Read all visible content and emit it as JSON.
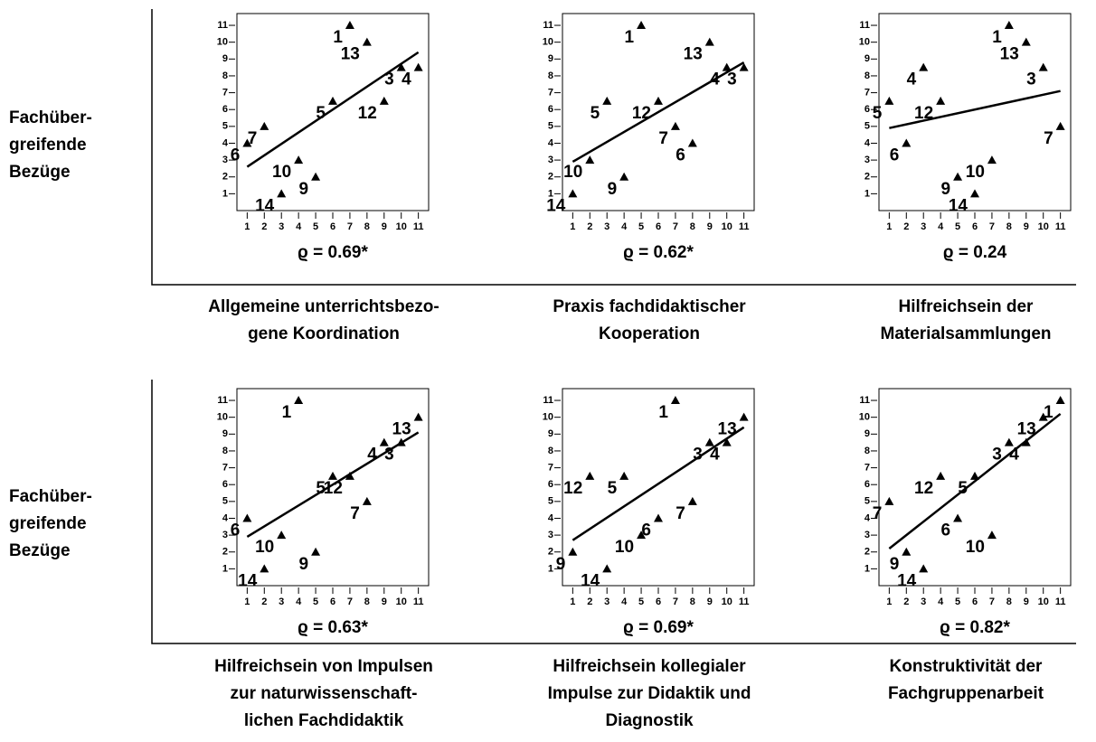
{
  "row_labels": [
    [
      "Fachüber-",
      "greifende",
      "Bezüge"
    ],
    [
      "Fachüber-",
      "greifende",
      "Bezüge"
    ]
  ],
  "chart_data": [
    {
      "type": "scatter",
      "annotation": "ϱ = 0.69*",
      "xlabel": [
        "Allgemeine unterrichtsbezo-",
        "gene Koordination"
      ],
      "xlim": [
        0.4,
        11.6
      ],
      "ylim": [
        0,
        11.7
      ],
      "xticks": [
        1,
        2,
        3,
        4,
        5,
        6,
        7,
        8,
        9,
        10,
        11
      ],
      "yticks": [
        1,
        2,
        3,
        4,
        5,
        6,
        7,
        8,
        9,
        10,
        11
      ],
      "series": [
        {
          "color": "#000000",
          "labels": [
            "1",
            "13",
            "3",
            "4",
            "7",
            "6",
            "5",
            "12",
            "10",
            "9",
            "14"
          ],
          "x": [
            7,
            8,
            10,
            11,
            2,
            1,
            6,
            9,
            4,
            5,
            3
          ],
          "y": [
            11,
            10,
            8.5,
            8.5,
            5,
            4,
            6.5,
            6.5,
            3,
            2,
            1
          ]
        }
      ],
      "fit": {
        "x": [
          1,
          11
        ],
        "y": [
          2.6,
          9.4
        ]
      }
    },
    {
      "type": "scatter",
      "annotation": "ϱ = 0.62*",
      "xlabel": [
        "Praxis fachdidaktischer",
        "Kooperation"
      ],
      "xlim": [
        0.4,
        11.6
      ],
      "ylim": [
        0,
        11.7
      ],
      "xticks": [
        1,
        2,
        3,
        4,
        5,
        6,
        7,
        8,
        9,
        10,
        11
      ],
      "yticks": [
        1,
        2,
        3,
        4,
        5,
        6,
        7,
        8,
        9,
        10,
        11
      ],
      "series": [
        {
          "color": "#000000",
          "labels": [
            "1",
            "13",
            "4",
            "3",
            "5",
            "12",
            "7",
            "6",
            "10",
            "9",
            "14"
          ],
          "x": [
            5,
            9,
            10,
            11,
            3,
            6,
            7,
            8,
            2,
            4,
            1
          ],
          "y": [
            11,
            10,
            8.5,
            8.5,
            6.5,
            6.5,
            5,
            4,
            3,
            2,
            1
          ]
        }
      ],
      "fit": {
        "x": [
          1,
          11
        ],
        "y": [
          2.9,
          8.8
        ]
      }
    },
    {
      "type": "scatter",
      "annotation": "ϱ = 0.24",
      "xlabel": [
        "Hilfreichsein der",
        "Materialsammlungen"
      ],
      "xlim": [
        0.4,
        11.6
      ],
      "ylim": [
        0,
        11.7
      ],
      "xticks": [
        1,
        2,
        3,
        4,
        5,
        6,
        7,
        8,
        9,
        10,
        11
      ],
      "yticks": [
        1,
        2,
        3,
        4,
        5,
        6,
        7,
        8,
        9,
        10,
        11
      ],
      "series": [
        {
          "color": "#000000",
          "labels": [
            "1",
            "13",
            "3",
            "4",
            "5",
            "12",
            "7",
            "6",
            "10",
            "9",
            "14"
          ],
          "x": [
            8,
            9,
            10,
            3,
            1,
            4,
            11,
            2,
            7,
            5,
            6
          ],
          "y": [
            11,
            10,
            8.5,
            8.5,
            6.5,
            6.5,
            5,
            4,
            3,
            2,
            1
          ]
        }
      ],
      "fit": {
        "x": [
          1,
          11
        ],
        "y": [
          4.9,
          7.1
        ]
      }
    },
    {
      "type": "scatter",
      "annotation": "ϱ = 0.63*",
      "xlabel": [
        "Hilfreichsein von Impulsen",
        "zur naturwissenschaft-",
        "lichen Fachdidaktik"
      ],
      "xlim": [
        0.4,
        11.6
      ],
      "ylim": [
        0,
        11.7
      ],
      "xticks": [
        1,
        2,
        3,
        4,
        5,
        6,
        7,
        8,
        9,
        10,
        11
      ],
      "yticks": [
        1,
        2,
        3,
        4,
        5,
        6,
        7,
        8,
        9,
        10,
        11
      ],
      "series": [
        {
          "color": "#000000",
          "labels": [
            "1",
            "13",
            "3",
            "4",
            "5",
            "12",
            "7",
            "6",
            "10",
            "9",
            "14"
          ],
          "x": [
            4,
            11,
            10,
            9,
            6,
            7,
            8,
            1,
            3,
            5,
            2
          ],
          "y": [
            11,
            10,
            8.5,
            8.5,
            6.5,
            6.5,
            5,
            4,
            3,
            2,
            1
          ]
        }
      ],
      "fit": {
        "x": [
          1,
          11
        ],
        "y": [
          2.9,
          9.1
        ]
      }
    },
    {
      "type": "scatter",
      "annotation": "ϱ = 0.69*",
      "xlabel": [
        "Hilfreichsein kollegialer",
        "Impulse zur Didaktik und",
        "Diagnostik"
      ],
      "xlim": [
        0.4,
        11.6
      ],
      "ylim": [
        0,
        11.7
      ],
      "xticks": [
        1,
        2,
        3,
        4,
        5,
        6,
        7,
        8,
        9,
        10,
        11
      ],
      "yticks": [
        1,
        2,
        3,
        4,
        5,
        6,
        7,
        8,
        9,
        10,
        11
      ],
      "series": [
        {
          "color": "#000000",
          "labels": [
            "1",
            "13",
            "3",
            "4",
            "12",
            "5",
            "7",
            "6",
            "10",
            "9",
            "14"
          ],
          "x": [
            7,
            11,
            9,
            10,
            2,
            4,
            8,
            6,
            5,
            1,
            3
          ],
          "y": [
            11,
            10,
            8.5,
            8.5,
            6.5,
            6.5,
            5,
            4,
            3,
            2,
            1
          ]
        }
      ],
      "fit": {
        "x": [
          1,
          11
        ],
        "y": [
          2.7,
          9.4
        ]
      }
    },
    {
      "type": "scatter",
      "annotation": "ϱ = 0.82*",
      "xlabel": [
        "Konstruktivität der",
        "Fachgruppenarbeit"
      ],
      "xlim": [
        0.4,
        11.6
      ],
      "ylim": [
        0,
        11.7
      ],
      "xticks": [
        1,
        2,
        3,
        4,
        5,
        6,
        7,
        8,
        9,
        10,
        11
      ],
      "yticks": [
        1,
        2,
        3,
        4,
        5,
        6,
        7,
        8,
        9,
        10,
        11
      ],
      "series": [
        {
          "color": "#000000",
          "labels": [
            "1",
            "13",
            "3",
            "4",
            "12",
            "5",
            "7",
            "6",
            "10",
            "9",
            "14"
          ],
          "x": [
            11,
            10,
            8,
            9,
            4,
            6,
            1,
            5,
            7,
            2,
            3
          ],
          "y": [
            11,
            10,
            8.5,
            8.5,
            6.5,
            6.5,
            5,
            4,
            3,
            2,
            1
          ]
        }
      ],
      "fit": {
        "x": [
          1,
          11
        ],
        "y": [
          2.2,
          10.2
        ]
      }
    }
  ]
}
